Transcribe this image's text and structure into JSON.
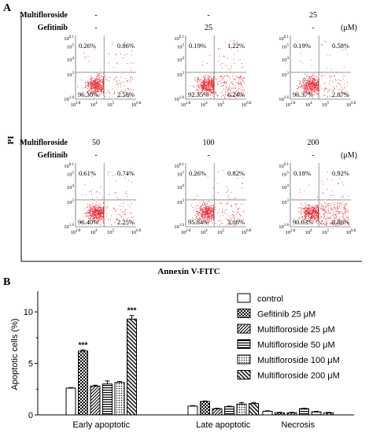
{
  "panel_a": {
    "label": "A",
    "y_axis_label": "PI",
    "x_axis_label": "Annexin V-FITC",
    "row_labels": [
      "Multifloroside",
      "Gefitinib"
    ],
    "unit": "(μM)",
    "x_ticks": [
      "10^2.8",
      "10^4",
      "10^5",
      "10^6.8"
    ],
    "y_ticks": [
      "10^1.6",
      "10^3",
      "10^4",
      "10^5",
      "10^6.1"
    ],
    "rows": [
      {
        "conditions": [
          {
            "multifloroside": "-",
            "gefitinib": "-"
          },
          {
            "multifloroside": "-",
            "gefitinib": "25"
          },
          {
            "multifloroside": "25",
            "gefitinib": "-"
          }
        ]
      },
      {
        "conditions": [
          {
            "multifloroside": "50",
            "gefitinib": "-"
          },
          {
            "multifloroside": "100",
            "gefitinib": "-"
          },
          {
            "multifloroside": "200",
            "gefitinib": "-"
          }
        ]
      }
    ],
    "plots": [
      {
        "ul": "0.26%",
        "ur": "0.86%",
        "ll": "96.30%",
        "lr": "2.58%"
      },
      {
        "ul": "0.19%",
        "ur": "1.22%",
        "ll": "92.35%",
        "lr": "6.24%"
      },
      {
        "ul": "0.19%",
        "ur": "0.58%",
        "ll": "96.37%",
        "lr": "2.87%"
      },
      {
        "ul": "0.61%",
        "ur": "0.74%",
        "ll": "96.40%",
        "lr": "2.25%"
      },
      {
        "ul": "0.26%",
        "ur": "0.82%",
        "ll": "95.84%",
        "lr": "3.08%"
      },
      {
        "ul": "0.18%",
        "ur": "0.92%",
        "ll": "90.03%",
        "lr": "8.86%"
      }
    ],
    "dot_color": "#e8202a"
  },
  "chart_data": {
    "label": "B",
    "type": "bar",
    "ylabel": "Apoptotic cells (%)",
    "xlabel": "",
    "ylim": [
      0,
      12
    ],
    "yticks": [
      0,
      5,
      10
    ],
    "categories": [
      "Early apoptotic",
      "Late apoptotic",
      "Necrosis"
    ],
    "series": [
      {
        "name": "control",
        "pattern": "white",
        "values": [
          2.6,
          0.85,
          0.35
        ],
        "errors": [
          0.05,
          0.05,
          0.05
        ]
      },
      {
        "name": "Gefitinib 25 μM",
        "pattern": "checker",
        "values": [
          6.2,
          1.3,
          0.2
        ],
        "errors": [
          0.1,
          0.05,
          0.05
        ]
      },
      {
        "name": "Multifloroside 25 μM",
        "pattern": "diag",
        "values": [
          2.8,
          0.6,
          0.2
        ],
        "errors": [
          0.08,
          0.05,
          0.05
        ]
      },
      {
        "name": "Multifloroside 50 μM",
        "pattern": "hlines",
        "values": [
          3.0,
          0.8,
          0.6
        ],
        "errors": [
          0.3,
          0.05,
          0.05
        ]
      },
      {
        "name": "Multifloroside 100 μM",
        "pattern": "dots",
        "values": [
          3.15,
          1.05,
          0.3
        ],
        "errors": [
          0.08,
          0.15,
          0.05
        ]
      },
      {
        "name": "Multifloroside 200 μM",
        "pattern": "backdiag",
        "values": [
          9.3,
          1.1,
          0.2
        ],
        "errors": [
          0.35,
          0.1,
          0.05
        ]
      }
    ],
    "annotations": [
      {
        "text": "***",
        "category": 0,
        "series": 1
      },
      {
        "text": "***",
        "category": 0,
        "series": 5
      }
    ],
    "legend_position": "top-right"
  }
}
